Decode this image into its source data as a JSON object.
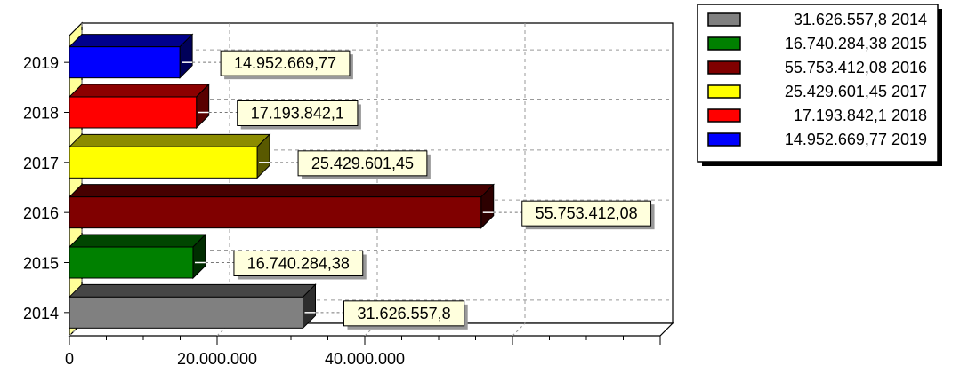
{
  "chart_data": {
    "type": "bar",
    "orientation": "horizontal",
    "style": "3d",
    "categories": [
      "2014",
      "2015",
      "2016",
      "2017",
      "2018",
      "2019"
    ],
    "values": [
      31626557.8,
      16740284.38,
      55753412.08,
      25429601.45,
      17193842.1,
      14952669.77
    ],
    "value_labels": [
      "31.626.557,8",
      "16.740.284,38",
      "55.753.412,08",
      "25.429.601,45",
      "17.193.842,1",
      "14.952.669,77"
    ],
    "colors": [
      "#808080",
      "#008000",
      "#800000",
      "#ffff00",
      "#ff0000",
      "#0000ff"
    ],
    "legend": [
      {
        "label": "31.626.557,8 2014",
        "color": "#808080"
      },
      {
        "label": "16.740.284,38 2015",
        "color": "#008000"
      },
      {
        "label": "55.753.412,08 2016",
        "color": "#800000"
      },
      {
        "label": "25.429.601,45 2017",
        "color": "#ffff00"
      },
      {
        "label": "17.193.842,1 2018",
        "color": "#ff0000"
      },
      {
        "label": "14.952.669,77 2019",
        "color": "#0000ff"
      }
    ],
    "legend_position": "top-right",
    "xlim": [
      0,
      80000000
    ],
    "x_ticks": [
      0,
      20000000,
      40000000
    ],
    "x_tick_labels": [
      "0",
      "20.000.000",
      "40.000.000"
    ],
    "x_gridlines": [
      0,
      20000000,
      40000000,
      60000000
    ],
    "grid": true,
    "title": "",
    "xlabel": "",
    "ylabel": ""
  }
}
